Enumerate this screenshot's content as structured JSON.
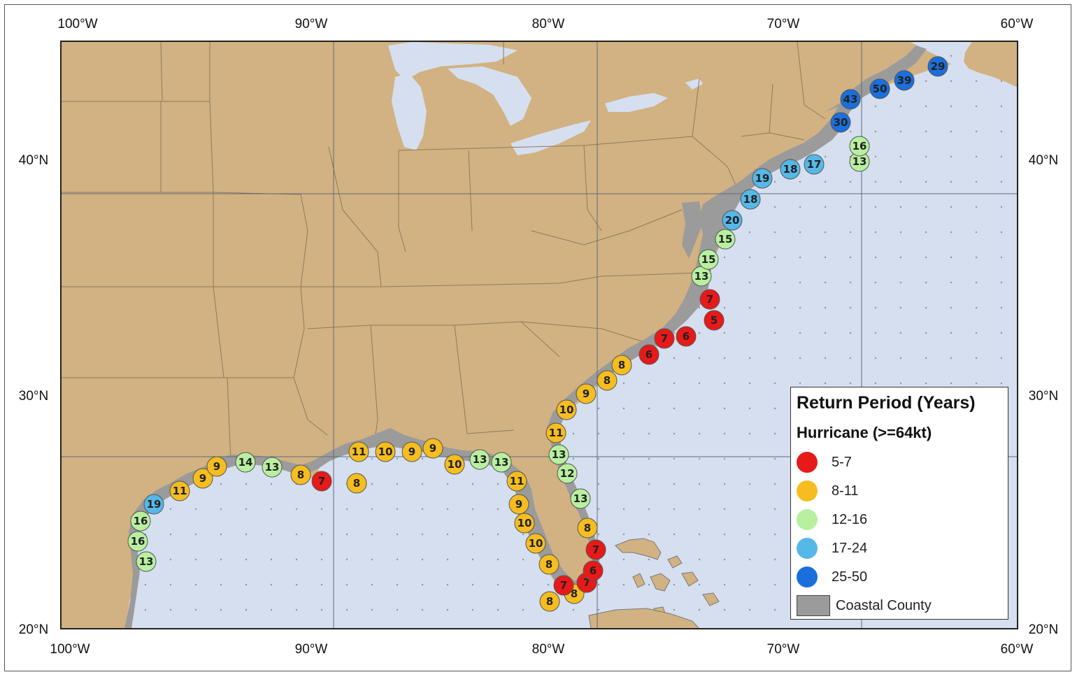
{
  "colors": {
    "land": "#d2b282",
    "water": "#d5dff0",
    "borders": "#8e7a5c",
    "grid": "#5f6b7a",
    "coastal_county": "#9b9b9b",
    "ocean_dots": "#8a95a6"
  },
  "axes": {
    "top_lon": [
      "100°W",
      "90°W",
      "80°W",
      "70°W",
      "60°W"
    ],
    "bottom_lon": [
      "100°W",
      "90°W",
      "80°W",
      "70°W",
      "60°W"
    ],
    "left_lat": [
      "40°N",
      "30°N",
      "20°N"
    ],
    "right_lat": [
      "40°N",
      "30°N",
      "20°N"
    ]
  },
  "legend": {
    "title": "Return Period (Years)",
    "subtitle": "Hurricane (>=64kt)",
    "items": [
      {
        "label": "5-7",
        "color": "#e81919"
      },
      {
        "label": "8-11",
        "color": "#f5bd1f"
      },
      {
        "label": "12-16",
        "color": "#b8f0a0"
      },
      {
        "label": "17-24",
        "color": "#56b8e8"
      },
      {
        "label": "25-50",
        "color": "#1a6fdc"
      }
    ],
    "county_label": "Coastal County"
  },
  "markers": [
    {
      "v": "19",
      "c": 3
    },
    {
      "v": "16",
      "c": 2
    },
    {
      "v": "16",
      "c": 2
    },
    {
      "v": "13",
      "c": 2
    },
    {
      "v": "11",
      "c": 1
    },
    {
      "v": "9",
      "c": 1
    },
    {
      "v": "9",
      "c": 1
    },
    {
      "v": "14",
      "c": 2
    },
    {
      "v": "13",
      "c": 2
    },
    {
      "v": "8",
      "c": 1
    },
    {
      "v": "7",
      "c": 0
    },
    {
      "v": "8",
      "c": 1
    },
    {
      "v": "11",
      "c": 1
    },
    {
      "v": "10",
      "c": 1
    },
    {
      "v": "9",
      "c": 1
    },
    {
      "v": "9",
      "c": 1
    },
    {
      "v": "10",
      "c": 1
    },
    {
      "v": "13",
      "c": 2
    },
    {
      "v": "13",
      "c": 2
    },
    {
      "v": "11",
      "c": 1
    },
    {
      "v": "9",
      "c": 1
    },
    {
      "v": "10",
      "c": 1
    },
    {
      "v": "10",
      "c": 1
    },
    {
      "v": "8",
      "c": 1
    },
    {
      "v": "8",
      "c": 1
    },
    {
      "v": "8",
      "c": 1
    },
    {
      "v": "7",
      "c": 0
    },
    {
      "v": "7",
      "c": 0
    },
    {
      "v": "6",
      "c": 0
    },
    {
      "v": "7",
      "c": 0
    },
    {
      "v": "8",
      "c": 1
    },
    {
      "v": "13",
      "c": 2
    },
    {
      "v": "12",
      "c": 2
    },
    {
      "v": "13",
      "c": 2
    },
    {
      "v": "11",
      "c": 1
    },
    {
      "v": "10",
      "c": 1
    },
    {
      "v": "9",
      "c": 1
    },
    {
      "v": "8",
      "c": 1
    },
    {
      "v": "8",
      "c": 1
    },
    {
      "v": "6",
      "c": 0
    },
    {
      "v": "7",
      "c": 0
    },
    {
      "v": "6",
      "c": 0
    },
    {
      "v": "5",
      "c": 0
    },
    {
      "v": "7",
      "c": 0
    },
    {
      "v": "13",
      "c": 2
    },
    {
      "v": "15",
      "c": 2
    },
    {
      "v": "15",
      "c": 2
    },
    {
      "v": "20",
      "c": 3
    },
    {
      "v": "18",
      "c": 3
    },
    {
      "v": "19",
      "c": 3
    },
    {
      "v": "18",
      "c": 3
    },
    {
      "v": "17",
      "c": 3
    },
    {
      "v": "13",
      "c": 2
    },
    {
      "v": "16",
      "c": 2
    },
    {
      "v": "30",
      "c": 4
    },
    {
      "v": "43",
      "c": 4
    },
    {
      "v": "50",
      "c": 4
    },
    {
      "v": "39",
      "c": 4
    },
    {
      "v": "29",
      "c": 4
    }
  ]
}
